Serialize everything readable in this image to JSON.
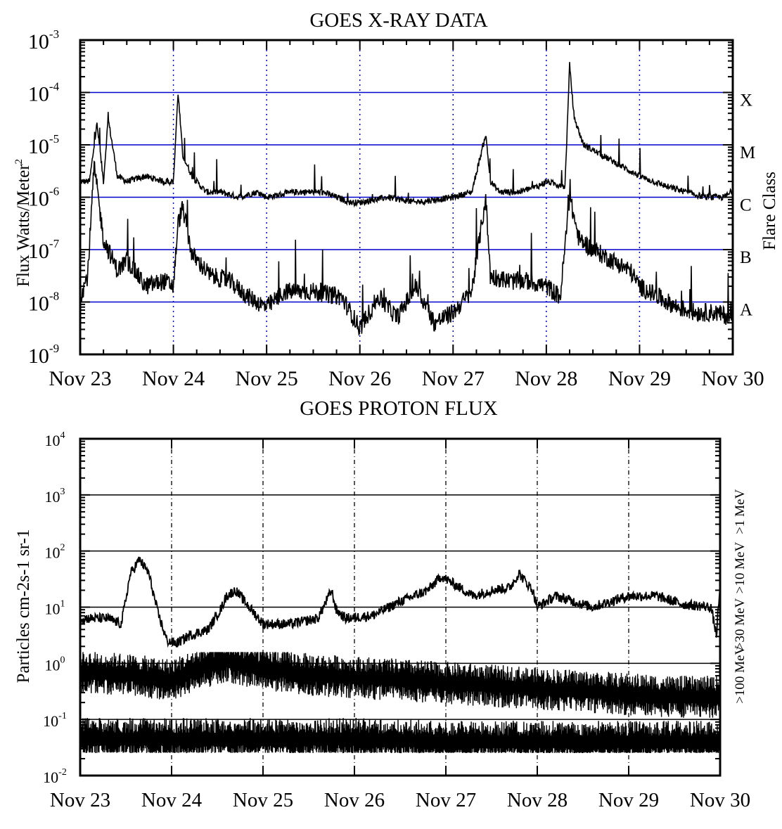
{
  "chart_data": [
    {
      "type": "line",
      "title": "GOES X-RAY DATA",
      "ylabel": "Flux Watts/Meter",
      "ylabel_sup": "2",
      "right_label": "Flare Class",
      "yscale": "log",
      "ylim_exp": [
        -9,
        -3
      ],
      "y_tick_base": "10",
      "y_tick_exps": [
        "-9",
        "-8",
        "-7",
        "-6",
        "-5",
        "-4",
        "-3"
      ],
      "xlim_days": [
        "Nov 23",
        "Nov 30"
      ],
      "x_ticks": [
        "Nov 23",
        "Nov 24",
        "Nov 25",
        "Nov 26",
        "Nov 27",
        "Nov 28",
        "Nov 29",
        "Nov 30"
      ],
      "grid": "blue horizontal lines at class thresholds, blue dotted vertical lines at day boundaries",
      "line_color": "#000000",
      "grid_color": "#0000cc",
      "flare_classes": [
        {
          "label": "A",
          "exp": -8
        },
        {
          "label": "B",
          "exp": -7
        },
        {
          "label": "C",
          "exp": -6
        },
        {
          "label": "M",
          "exp": -5
        },
        {
          "label": "X",
          "exp": -4
        }
      ],
      "series": [
        {
          "x_days": [
            0,
            0.1,
            0.18,
            0.25,
            0.3,
            0.4,
            0.5,
            0.7,
            0.9,
            1.0,
            1.05,
            1.1,
            1.2,
            1.35,
            1.5,
            1.7,
            1.9,
            2.0,
            2.3,
            2.6,
            2.9,
            3.0,
            3.3,
            3.6,
            4.0,
            4.2,
            4.35,
            4.4,
            4.5,
            4.7,
            4.9,
            5.0,
            5.2,
            5.25,
            5.3,
            5.4,
            5.6,
            5.8,
            6.0,
            6.3,
            6.5,
            6.7,
            6.9,
            7.0
          ],
          "flux_exp": [
            -5.7,
            -5.7,
            -4.6,
            -5.7,
            -4.5,
            -5.6,
            -5.7,
            -5.6,
            -5.7,
            -5.7,
            -4.0,
            -5.2,
            -5.6,
            -5.9,
            -5.9,
            -6.0,
            -5.9,
            -6.0,
            -5.9,
            -5.9,
            -6.1,
            -6.1,
            -6.0,
            -6.1,
            -6.0,
            -5.9,
            -4.8,
            -5.7,
            -5.9,
            -5.9,
            -5.8,
            -5.7,
            -5.8,
            -3.5,
            -4.5,
            -5.0,
            -5.2,
            -5.4,
            -5.6,
            -5.8,
            -5.9,
            -6.0,
            -6.0,
            -5.9
          ]
        },
        {
          "x_days": [
            0,
            0.08,
            0.15,
            0.25,
            0.4,
            0.5,
            0.7,
            0.9,
            1.0,
            1.05,
            1.1,
            1.2,
            1.4,
            1.6,
            1.8,
            2.0,
            2.2,
            2.5,
            2.8,
            3.0,
            3.2,
            3.4,
            3.6,
            3.8,
            4.0,
            4.2,
            4.35,
            4.4,
            4.6,
            4.8,
            5.0,
            5.15,
            5.25,
            5.35,
            5.5,
            5.7,
            5.9,
            6.0,
            6.2,
            6.4,
            6.6,
            6.8,
            7.0
          ],
          "flux_exp": [
            -7.9,
            -7.5,
            -5.4,
            -6.8,
            -7.4,
            -7.2,
            -7.7,
            -7.6,
            -7.7,
            -6.5,
            -6.2,
            -7.1,
            -7.5,
            -7.6,
            -7.9,
            -8.1,
            -7.8,
            -7.8,
            -7.9,
            -8.5,
            -7.9,
            -8.3,
            -7.7,
            -8.4,
            -8.2,
            -7.8,
            -6.0,
            -7.5,
            -7.6,
            -7.6,
            -7.7,
            -7.9,
            -6.0,
            -6.8,
            -7.0,
            -7.2,
            -7.4,
            -7.7,
            -7.9,
            -8.1,
            -8.2,
            -8.2,
            -8.3
          ]
        }
      ]
    },
    {
      "type": "line",
      "title": "GOES PROTON FLUX",
      "ylabel": "Particles cm-2s-1 sr-1",
      "yscale": "log",
      "ylim_exp": [
        -2,
        4
      ],
      "y_tick_base": "10",
      "y_tick_exps": [
        "-2",
        "-1",
        "0",
        "1",
        "2",
        "3",
        "4"
      ],
      "xlim_days": [
        "Nov 23",
        "Nov 30"
      ],
      "x_ticks": [
        "Nov 23",
        "Nov 24",
        "Nov 25",
        "Nov 26",
        "Nov 27",
        "Nov 28",
        "Nov 29",
        "Nov 30"
      ],
      "grid": "black horizontal lines at decades, black dash-dot vertical lines at day boundaries",
      "line_color": "#000000",
      "energy_labels": [
        {
          "label": ">100 MeV",
          "exp_center": -0.2
        },
        {
          "label": ">30 MeV",
          "exp_center": 0.7
        },
        {
          "label": ">10 MeV",
          "exp_center": 1.7
        },
        {
          "label": ">1 MeV",
          "exp_center": 2.7
        }
      ],
      "series": [
        {
          "name": ">10 MeV",
          "x_days": [
            0,
            0.3,
            0.45,
            0.55,
            0.65,
            0.75,
            0.85,
            0.95,
            1.05,
            1.2,
            1.4,
            1.55,
            1.6,
            1.7,
            1.85,
            2.0,
            2.3,
            2.6,
            2.75,
            2.8,
            2.9,
            3.2,
            3.5,
            3.8,
            3.95,
            4.1,
            4.3,
            4.5,
            4.7,
            4.8,
            4.95,
            5.0,
            5.2,
            5.4,
            5.6,
            5.8,
            6.0,
            6.3,
            6.6,
            6.9,
            6.96,
            7.0
          ],
          "flux_exp": [
            0.8,
            0.8,
            0.7,
            1.6,
            1.85,
            1.6,
            0.9,
            0.4,
            0.35,
            0.5,
            0.6,
            1.0,
            1.2,
            1.3,
            1.0,
            0.7,
            0.7,
            0.8,
            1.3,
            0.95,
            0.8,
            0.85,
            1.1,
            1.3,
            1.55,
            1.4,
            1.2,
            1.3,
            1.35,
            1.6,
            1.3,
            1.0,
            1.2,
            1.1,
            1.0,
            1.1,
            1.2,
            1.2,
            1.05,
            1.0,
            0.5,
            1.4
          ]
        },
        {
          "name": ">30 MeV",
          "x_days": [
            0,
            0.5,
            1.0,
            1.3,
            1.6,
            1.8,
            2.0,
            2.5,
            3.0,
            3.5,
            4.0,
            4.5,
            5.0,
            5.5,
            6.0,
            6.5,
            7.0
          ],
          "flux_exp": [
            -0.15,
            -0.2,
            -0.3,
            -0.1,
            0.05,
            -0.05,
            -0.1,
            -0.2,
            -0.25,
            -0.3,
            -0.35,
            -0.4,
            -0.45,
            -0.5,
            -0.55,
            -0.6,
            -0.6
          ]
        },
        {
          "name": ">100 MeV",
          "x_days": [
            0,
            1.0,
            2.0,
            3.0,
            4.0,
            5.0,
            6.0,
            7.0
          ],
          "flux_exp": [
            -1.35,
            -1.35,
            -1.35,
            -1.35,
            -1.4,
            -1.4,
            -1.4,
            -1.4
          ]
        }
      ]
    }
  ]
}
